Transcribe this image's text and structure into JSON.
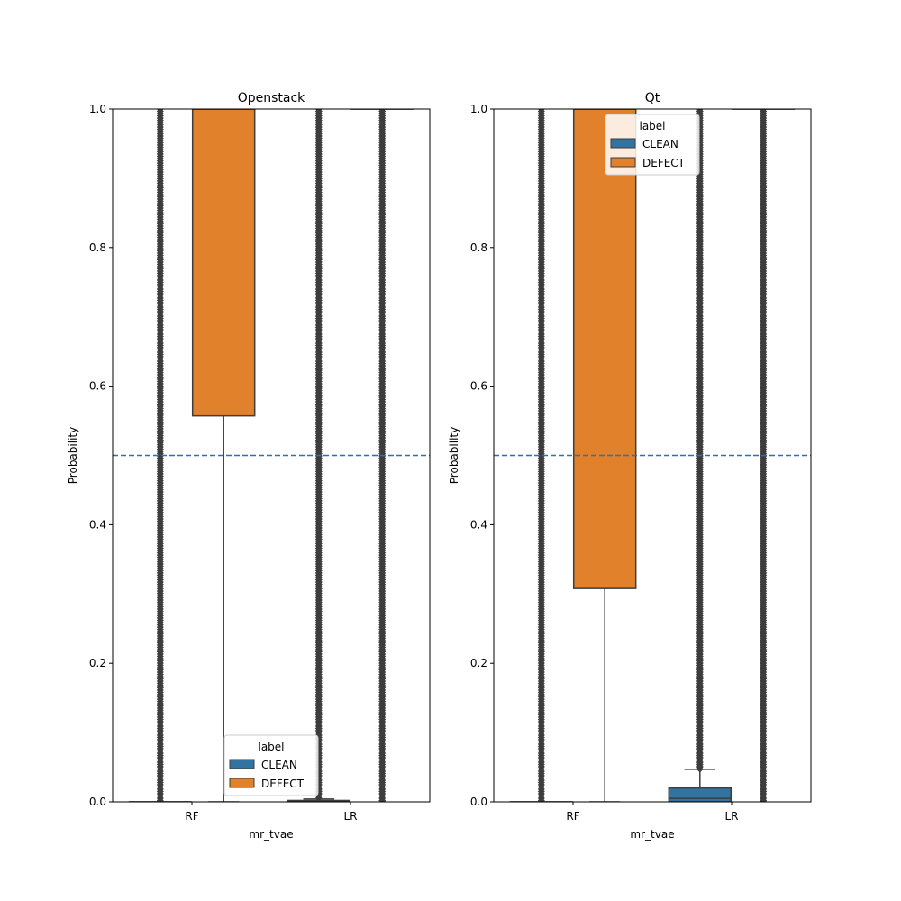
{
  "chart_data": [
    {
      "type": "box",
      "title": "Openstack",
      "xlabel": "mr_tvae",
      "ylabel": "Probability",
      "ylim": [
        0,
        1
      ],
      "yticks": [
        "0.0",
        "0.2",
        "0.4",
        "0.6",
        "0.8",
        "1.0"
      ],
      "categories": [
        "RF",
        "LR"
      ],
      "threshold": 0.5,
      "legend": {
        "title": "label",
        "placement": "lower-center",
        "entries": [
          "CLEAN",
          "DEFECT"
        ]
      },
      "series": [
        {
          "name": "CLEAN",
          "color": "#3274a1",
          "boxes": [
            {
              "category": "RF",
              "q1": 0.0,
              "median": 0.0,
              "q3": 0.0,
              "whisker_low": 0.0,
              "whisker_high": 0.0,
              "outliers_from": 0.0,
              "outliers_to": 1.0
            },
            {
              "category": "LR",
              "q1": 0.0,
              "median": 0.001,
              "q3": 0.002,
              "whisker_low": 0.0,
              "whisker_high": 0.004,
              "outliers_from": 0.004,
              "outliers_to": 1.0
            }
          ]
        },
        {
          "name": "DEFECT",
          "color": "#e1812c",
          "boxes": [
            {
              "category": "RF",
              "q1": 0.557,
              "median": 1.0,
              "q3": 1.0,
              "whisker_low": 0.0,
              "whisker_high": 1.0,
              "outliers_from": null,
              "outliers_to": null
            },
            {
              "category": "LR",
              "q1": 1.0,
              "median": 1.0,
              "q3": 1.0,
              "whisker_low": 1.0,
              "whisker_high": 1.0,
              "outliers_from": 0.0,
              "outliers_to": 1.0
            }
          ]
        }
      ]
    },
    {
      "type": "box",
      "title": "Qt",
      "xlabel": "mr_tvae",
      "ylabel": "Probability",
      "ylim": [
        0,
        1
      ],
      "yticks": [
        "0.0",
        "0.2",
        "0.4",
        "0.6",
        "0.8",
        "1.0"
      ],
      "categories": [
        "RF",
        "LR"
      ],
      "threshold": 0.5,
      "legend": {
        "title": "label",
        "placement": "upper-center",
        "entries": [
          "CLEAN",
          "DEFECT"
        ]
      },
      "series": [
        {
          "name": "CLEAN",
          "color": "#3274a1",
          "boxes": [
            {
              "category": "RF",
              "q1": 0.0,
              "median": 0.0,
              "q3": 0.0,
              "whisker_low": 0.0,
              "whisker_high": 0.0,
              "outliers_from": 0.0,
              "outliers_to": 1.0
            },
            {
              "category": "LR",
              "q1": 0.0,
              "median": 0.005,
              "q3": 0.02,
              "whisker_low": 0.0,
              "whisker_high": 0.047,
              "outliers_from": 0.047,
              "outliers_to": 1.0
            }
          ]
        },
        {
          "name": "DEFECT",
          "color": "#e1812c",
          "boxes": [
            {
              "category": "RF",
              "q1": 0.308,
              "median": 1.0,
              "q3": 1.0,
              "whisker_low": 0.0,
              "whisker_high": 1.0,
              "outliers_from": null,
              "outliers_to": null
            },
            {
              "category": "LR",
              "q1": 1.0,
              "median": 1.0,
              "q3": 1.0,
              "whisker_low": 1.0,
              "whisker_high": 1.0,
              "outliers_from": 0.0,
              "outliers_to": 1.0
            }
          ]
        }
      ]
    }
  ]
}
